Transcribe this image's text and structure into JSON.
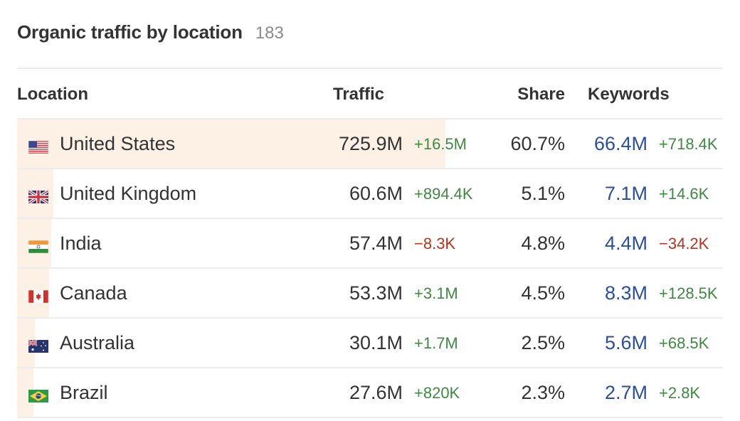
{
  "header": {
    "title": "Organic traffic by location",
    "count": "183"
  },
  "columns": {
    "location": "Location",
    "traffic": "Traffic",
    "share": "Share",
    "keywords": "Keywords"
  },
  "rows": [
    {
      "flag": "us-flag-icon",
      "country": "United States",
      "traffic": "725.9M",
      "traffic_change": "+16.5M",
      "traffic_trend": "up",
      "share": "60.7%",
      "share_fraction": 0.607,
      "keywords": "66.4M",
      "keywords_change": "+718.4K",
      "keywords_trend": "up"
    },
    {
      "flag": "uk-flag-icon",
      "country": "United Kingdom",
      "traffic": "60.6M",
      "traffic_change": "+894.4K",
      "traffic_trend": "up",
      "share": "5.1%",
      "share_fraction": 0.051,
      "keywords": "7.1M",
      "keywords_change": "+14.6K",
      "keywords_trend": "up"
    },
    {
      "flag": "in-flag-icon",
      "country": "India",
      "traffic": "57.4M",
      "traffic_change": "−8.3K",
      "traffic_trend": "down",
      "share": "4.8%",
      "share_fraction": 0.048,
      "keywords": "4.4M",
      "keywords_change": "−34.2K",
      "keywords_trend": "down"
    },
    {
      "flag": "ca-flag-icon",
      "country": "Canada",
      "traffic": "53.3M",
      "traffic_change": "+3.1M",
      "traffic_trend": "up",
      "share": "4.5%",
      "share_fraction": 0.045,
      "keywords": "8.3M",
      "keywords_change": "+128.5K",
      "keywords_trend": "up"
    },
    {
      "flag": "au-flag-icon",
      "country": "Australia",
      "traffic": "30.1M",
      "traffic_change": "+1.7M",
      "traffic_trend": "up",
      "share": "2.5%",
      "share_fraction": 0.025,
      "keywords": "5.6M",
      "keywords_change": "+68.5K",
      "keywords_trend": "up"
    },
    {
      "flag": "br-flag-icon",
      "country": "Brazil",
      "traffic": "27.6M",
      "traffic_change": "+820K",
      "traffic_trend": "up",
      "share": "2.3%",
      "share_fraction": 0.023,
      "keywords": "2.7M",
      "keywords_change": "+2.8K",
      "keywords_trend": "up"
    }
  ],
  "colors": {
    "positive": "#3d8a40",
    "negative": "#b8321d",
    "keywords": "#2a4fa0",
    "share_bar": "#fdf1e6"
  }
}
